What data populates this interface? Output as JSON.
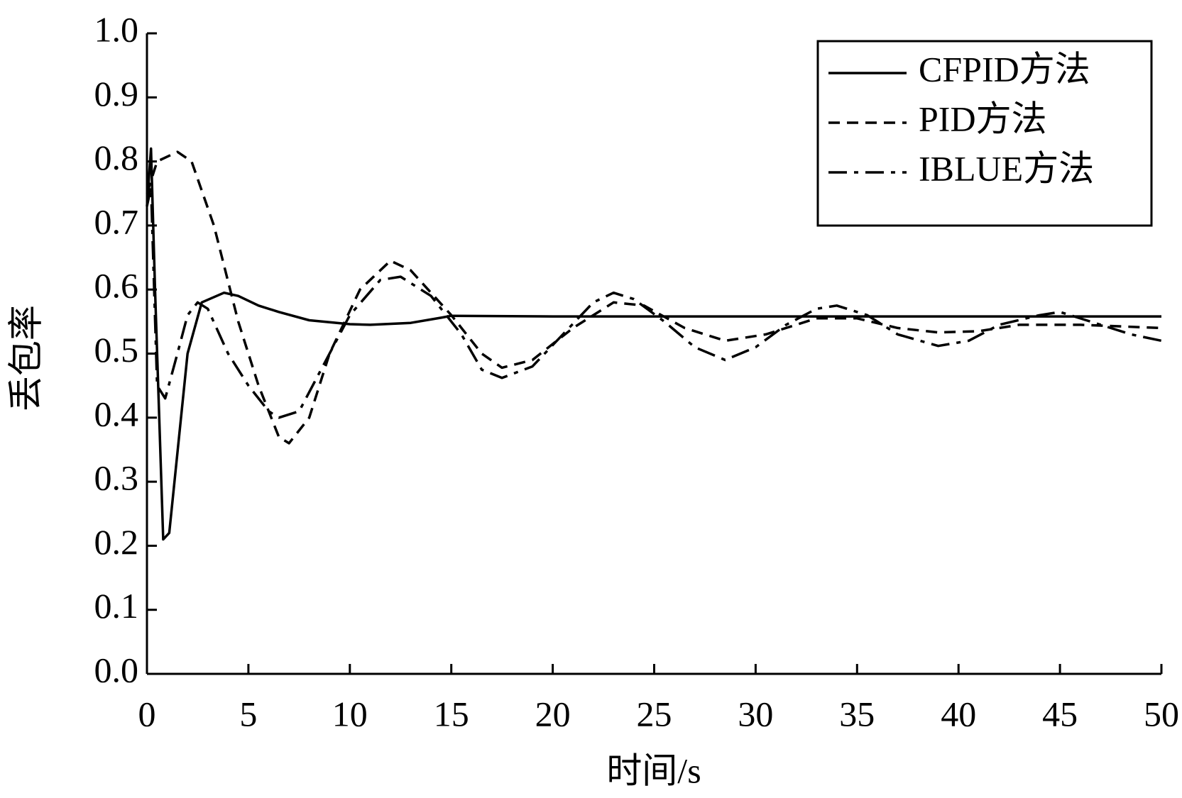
{
  "chart_data": {
    "type": "line",
    "xlabel": "时间/s",
    "ylabel": "丢包率",
    "xlim": [
      0,
      50
    ],
    "ylim": [
      0,
      1
    ],
    "xticks": [
      0,
      5,
      10,
      15,
      20,
      25,
      30,
      35,
      40,
      45,
      50
    ],
    "yticks": [
      {
        "value": 0,
        "label": "0.0"
      },
      0.1,
      0.2,
      0.3,
      0.4,
      0.5,
      0.6,
      0.7,
      0.8,
      0.9,
      {
        "value": 1,
        "label": "1.0"
      }
    ],
    "legend": "upper right",
    "series": [
      {
        "name": "CFPID方法",
        "color": "#000000",
        "linestyle": "solid",
        "x": [
          0,
          0.2,
          0.4,
          0.8,
          1.1,
          2,
          2.7,
          3.8,
          4.5,
          5.5,
          6.5,
          8,
          10,
          11,
          13,
          14.5,
          15,
          20,
          50
        ],
        "values": [
          0.73,
          0.82,
          0.6,
          0.21,
          0.22,
          0.5,
          0.58,
          0.595,
          0.59,
          0.575,
          0.565,
          0.552,
          0.546,
          0.545,
          0.548,
          0.556,
          0.559,
          0.558,
          0.558
        ]
      },
      {
        "name": "PID方法",
        "color": "#000000",
        "linestyle": "dashed",
        "x": [
          0,
          0.5,
          1.5,
          2.2,
          3.3,
          4.5,
          5.5,
          6.5,
          7,
          8,
          9,
          10.5,
          12,
          13,
          15,
          16.5,
          17.5,
          19,
          21,
          23,
          24.5,
          26.5,
          28.5,
          30.5,
          33,
          35,
          37,
          39,
          41,
          43,
          46,
          50
        ],
        "values": [
          0.75,
          0.8,
          0.815,
          0.8,
          0.7,
          0.55,
          0.45,
          0.37,
          0.36,
          0.4,
          0.5,
          0.6,
          0.645,
          0.63,
          0.56,
          0.5,
          0.478,
          0.49,
          0.54,
          0.58,
          0.575,
          0.54,
          0.52,
          0.53,
          0.555,
          0.555,
          0.54,
          0.533,
          0.535,
          0.545,
          0.545,
          0.54
        ]
      },
      {
        "name": "IBLUE方法",
        "color": "#000000",
        "linestyle": "dashdot",
        "x": [
          0,
          0.2,
          0.5,
          0.9,
          1.5,
          2,
          2.5,
          3,
          4,
          5,
          6,
          6.5,
          7.5,
          8.5,
          10,
          11.5,
          12.5,
          14,
          15.5,
          16.5,
          17.5,
          19,
          20.5,
          22,
          23,
          24,
          25.5,
          27,
          28.5,
          30,
          31.5,
          33,
          34,
          35.5,
          37,
          39,
          40.5,
          42,
          44,
          45,
          46.5,
          48.5,
          50
        ],
        "values": [
          0.73,
          0.76,
          0.45,
          0.43,
          0.5,
          0.56,
          0.58,
          0.57,
          0.5,
          0.45,
          0.41,
          0.4,
          0.41,
          0.47,
          0.56,
          0.615,
          0.62,
          0.59,
          0.53,
          0.475,
          0.462,
          0.48,
          0.53,
          0.58,
          0.595,
          0.585,
          0.55,
          0.51,
          0.49,
          0.51,
          0.545,
          0.57,
          0.575,
          0.56,
          0.53,
          0.512,
          0.52,
          0.545,
          0.56,
          0.565,
          0.55,
          0.53,
          0.52
        ]
      }
    ]
  }
}
